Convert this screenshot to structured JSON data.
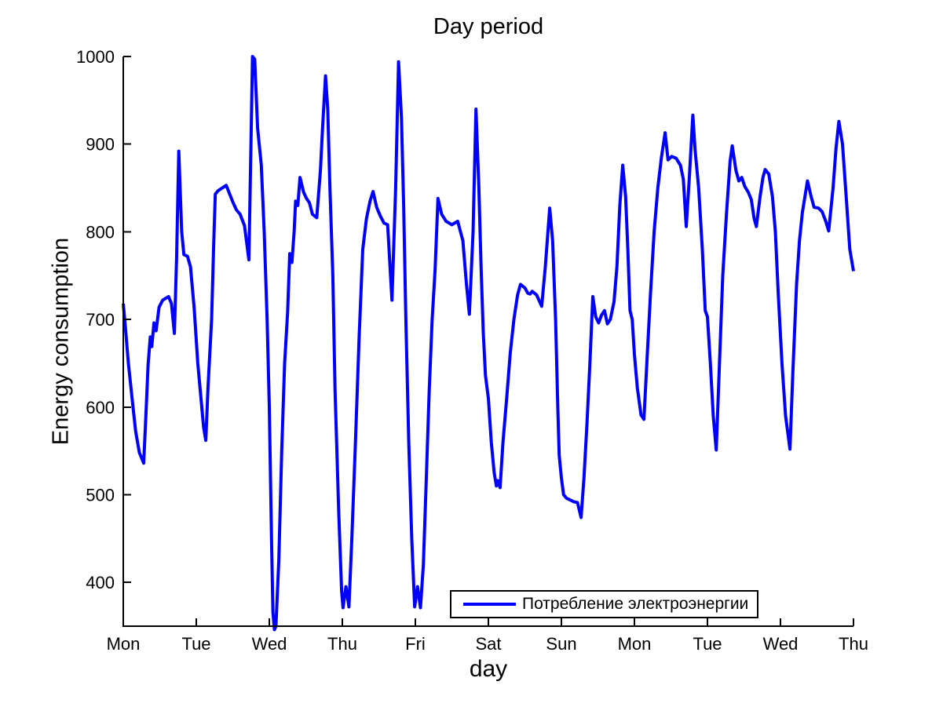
{
  "figure": {
    "title": "Day period",
    "xlabel": "day",
    "ylabel": "Energy consumption",
    "background_color": "#ffffff",
    "axis_color": "#000000",
    "line_color": "#0000ff",
    "legend": {
      "label": "Потребление электроэнергии",
      "position": "lower right"
    }
  },
  "chart_data": {
    "type": "line",
    "title": "Day period",
    "xlabel": "day",
    "ylabel": "Energy consumption",
    "grid": false,
    "xlim": [
      0,
      10
    ],
    "ylim": [
      350,
      1000
    ],
    "y_ticks": [
      400,
      500,
      600,
      700,
      800,
      900,
      1000
    ],
    "x_ticks": [
      0,
      1,
      2,
      3,
      4,
      5,
      6,
      7,
      8,
      9,
      10
    ],
    "x_tick_labels": [
      "Mon",
      "Tue",
      "Wed",
      "Thu",
      "Fri",
      "Sat",
      "Sun",
      "Mon",
      "Tue",
      "Wed",
      "Thu"
    ],
    "legend_entries": [
      "Потребление электроэнергии"
    ],
    "legend_position": "lower right",
    "series": [
      {
        "name": "Потребление электроэнергии",
        "color": "#0000ff",
        "x_unit": "day",
        "points": [
          [
            0,
            718
          ],
          [
            0.03,
            690
          ],
          [
            0.07,
            650
          ],
          [
            0.12,
            610
          ],
          [
            0.17,
            572
          ],
          [
            0.22,
            548
          ],
          [
            0.28,
            536
          ],
          [
            0.31,
            590
          ],
          [
            0.34,
            648
          ],
          [
            0.37,
            680
          ],
          [
            0.39,
            669
          ],
          [
            0.42,
            696
          ],
          [
            0.45,
            687
          ],
          [
            0.49,
            714
          ],
          [
            0.54,
            722
          ],
          [
            0.62,
            726
          ],
          [
            0.66,
            718
          ],
          [
            0.7,
            684
          ],
          [
            0.73,
            770
          ],
          [
            0.76,
            892
          ],
          [
            0.8,
            800
          ],
          [
            0.83,
            774
          ],
          [
            0.88,
            772
          ],
          [
            0.92,
            760
          ],
          [
            0.97,
            714
          ],
          [
            1.02,
            650
          ],
          [
            1.1,
            577
          ],
          [
            1.13,
            562
          ],
          [
            1.16,
            622
          ],
          [
            1.21,
            700
          ],
          [
            1.24,
            790
          ],
          [
            1.26,
            843
          ],
          [
            1.3,
            847
          ],
          [
            1.41,
            853
          ],
          [
            1.5,
            834
          ],
          [
            1.55,
            825
          ],
          [
            1.6,
            820
          ],
          [
            1.66,
            807
          ],
          [
            1.72,
            768
          ],
          [
            1.77,
            1000
          ],
          [
            1.8,
            997
          ],
          [
            1.84,
            918
          ],
          [
            1.89,
            876
          ],
          [
            1.93,
            800
          ],
          [
            1.97,
            700
          ],
          [
            2,
            600
          ],
          [
            2.03,
            450
          ],
          [
            2.05,
            366
          ],
          [
            2.07,
            346
          ],
          [
            2.09,
            350
          ],
          [
            2.13,
            425
          ],
          [
            2.17,
            550
          ],
          [
            2.21,
            650
          ],
          [
            2.25,
            708
          ],
          [
            2.28,
            775
          ],
          [
            2.31,
            765
          ],
          [
            2.34,
            800
          ],
          [
            2.36,
            835
          ],
          [
            2.39,
            830
          ],
          [
            2.42,
            862
          ],
          [
            2.47,
            845
          ],
          [
            2.51,
            838
          ],
          [
            2.55,
            833
          ],
          [
            2.59,
            820
          ],
          [
            2.65,
            816
          ],
          [
            2.7,
            870
          ],
          [
            2.73,
            920
          ],
          [
            2.77,
            978
          ],
          [
            2.8,
            940
          ],
          [
            2.83,
            850
          ],
          [
            2.87,
            750
          ],
          [
            2.9,
            620
          ],
          [
            2.95,
            480
          ],
          [
            2.99,
            390
          ],
          [
            3.01,
            371
          ],
          [
            3.05,
            395
          ],
          [
            3.09,
            372
          ],
          [
            3.13,
            450
          ],
          [
            3.18,
            560
          ],
          [
            3.23,
            680
          ],
          [
            3.28,
            780
          ],
          [
            3.33,
            815
          ],
          [
            3.38,
            835
          ],
          [
            3.42,
            846
          ],
          [
            3.47,
            828
          ],
          [
            3.52,
            818
          ],
          [
            3.57,
            810
          ],
          [
            3.62,
            808
          ],
          [
            3.68,
            722
          ],
          [
            3.73,
            850
          ],
          [
            3.77,
            994
          ],
          [
            3.81,
            930
          ],
          [
            3.84,
            830
          ],
          [
            3.87,
            700
          ],
          [
            3.91,
            560
          ],
          [
            3.95,
            450
          ],
          [
            3.99,
            372
          ],
          [
            4.03,
            395
          ],
          [
            4.07,
            371
          ],
          [
            4.11,
            420
          ],
          [
            4.15,
            520
          ],
          [
            4.19,
            620
          ],
          [
            4.23,
            700
          ],
          [
            4.27,
            756
          ],
          [
            4.31,
            838
          ],
          [
            4.36,
            820
          ],
          [
            4.42,
            812
          ],
          [
            4.5,
            808
          ],
          [
            4.58,
            812
          ],
          [
            4.65,
            790
          ],
          [
            4.7,
            740
          ],
          [
            4.74,
            706
          ],
          [
            4.79,
            800
          ],
          [
            4.83,
            940
          ],
          [
            4.87,
            850
          ],
          [
            4.9,
            760
          ],
          [
            4.93,
            685
          ],
          [
            4.96,
            636
          ],
          [
            5,
            610
          ],
          [
            5.04,
            560
          ],
          [
            5.08,
            525
          ],
          [
            5.11,
            510
          ],
          [
            5.13,
            516
          ],
          [
            5.16,
            508
          ],
          [
            5.2,
            560
          ],
          [
            5.25,
            610
          ],
          [
            5.3,
            662
          ],
          [
            5.35,
            700
          ],
          [
            5.4,
            728
          ],
          [
            5.44,
            740
          ],
          [
            5.5,
            736
          ],
          [
            5.54,
            730
          ],
          [
            5.57,
            729
          ],
          [
            5.6,
            732
          ],
          [
            5.66,
            728
          ],
          [
            5.73,
            715
          ],
          [
            5.78,
            760
          ],
          [
            5.84,
            827
          ],
          [
            5.88,
            790
          ],
          [
            5.92,
            700
          ],
          [
            5.95,
            600
          ],
          [
            5.97,
            545
          ],
          [
            6,
            519
          ],
          [
            6.03,
            500
          ],
          [
            6.07,
            496
          ],
          [
            6.12,
            494
          ],
          [
            6.17,
            492
          ],
          [
            6.22,
            491
          ],
          [
            6.27,
            474
          ],
          [
            6.31,
            520
          ],
          [
            6.35,
            580
          ],
          [
            6.39,
            650
          ],
          [
            6.43,
            726
          ],
          [
            6.47,
            703
          ],
          [
            6.51,
            696
          ],
          [
            6.55,
            705
          ],
          [
            6.59,
            710
          ],
          [
            6.63,
            695
          ],
          [
            6.67,
            700
          ],
          [
            6.72,
            720
          ],
          [
            6.76,
            760
          ],
          [
            6.8,
            830
          ],
          [
            6.84,
            876
          ],
          [
            6.88,
            840
          ],
          [
            6.91,
            780
          ],
          [
            6.94,
            710
          ],
          [
            6.97,
            700
          ],
          [
            7,
            660
          ],
          [
            7.04,
            622
          ],
          [
            7.09,
            591
          ],
          [
            7.13,
            586
          ],
          [
            7.17,
            650
          ],
          [
            7.22,
            730
          ],
          [
            7.27,
            800
          ],
          [
            7.32,
            850
          ],
          [
            7.37,
            885
          ],
          [
            7.42,
            913
          ],
          [
            7.46,
            882
          ],
          [
            7.51,
            886
          ],
          [
            7.57,
            884
          ],
          [
            7.63,
            876
          ],
          [
            7.67,
            860
          ],
          [
            7.71,
            806
          ],
          [
            7.75,
            860
          ],
          [
            7.8,
            933
          ],
          [
            7.83,
            894
          ],
          [
            7.88,
            850
          ],
          [
            7.93,
            780
          ],
          [
            7.97,
            710
          ],
          [
            8,
            703
          ],
          [
            8.04,
            650
          ],
          [
            8.08,
            590
          ],
          [
            8.12,
            551
          ],
          [
            8.16,
            640
          ],
          [
            8.21,
            750
          ],
          [
            8.26,
            820
          ],
          [
            8.31,
            880
          ],
          [
            8.34,
            898
          ],
          [
            8.39,
            870
          ],
          [
            8.43,
            858
          ],
          [
            8.47,
            862
          ],
          [
            8.51,
            852
          ],
          [
            8.56,
            845
          ],
          [
            8.6,
            837
          ],
          [
            8.64,
            815
          ],
          [
            8.67,
            806
          ],
          [
            8.72,
            840
          ],
          [
            8.76,
            862
          ],
          [
            8.79,
            871
          ],
          [
            8.84,
            866
          ],
          [
            8.89,
            840
          ],
          [
            8.93,
            800
          ],
          [
            8.97,
            729
          ],
          [
            9.02,
            650
          ],
          [
            9.07,
            590
          ],
          [
            9.13,
            552
          ],
          [
            9.17,
            640
          ],
          [
            9.22,
            740
          ],
          [
            9.26,
            790
          ],
          [
            9.3,
            822
          ],
          [
            9.37,
            858
          ],
          [
            9.42,
            840
          ],
          [
            9.46,
            828
          ],
          [
            9.52,
            827
          ],
          [
            9.57,
            823
          ],
          [
            9.62,
            812
          ],
          [
            9.66,
            801
          ],
          [
            9.72,
            850
          ],
          [
            9.76,
            895
          ],
          [
            9.8,
            926
          ],
          [
            9.85,
            900
          ],
          [
            9.9,
            840
          ],
          [
            9.95,
            780
          ],
          [
            10,
            755
          ]
        ]
      }
    ]
  }
}
